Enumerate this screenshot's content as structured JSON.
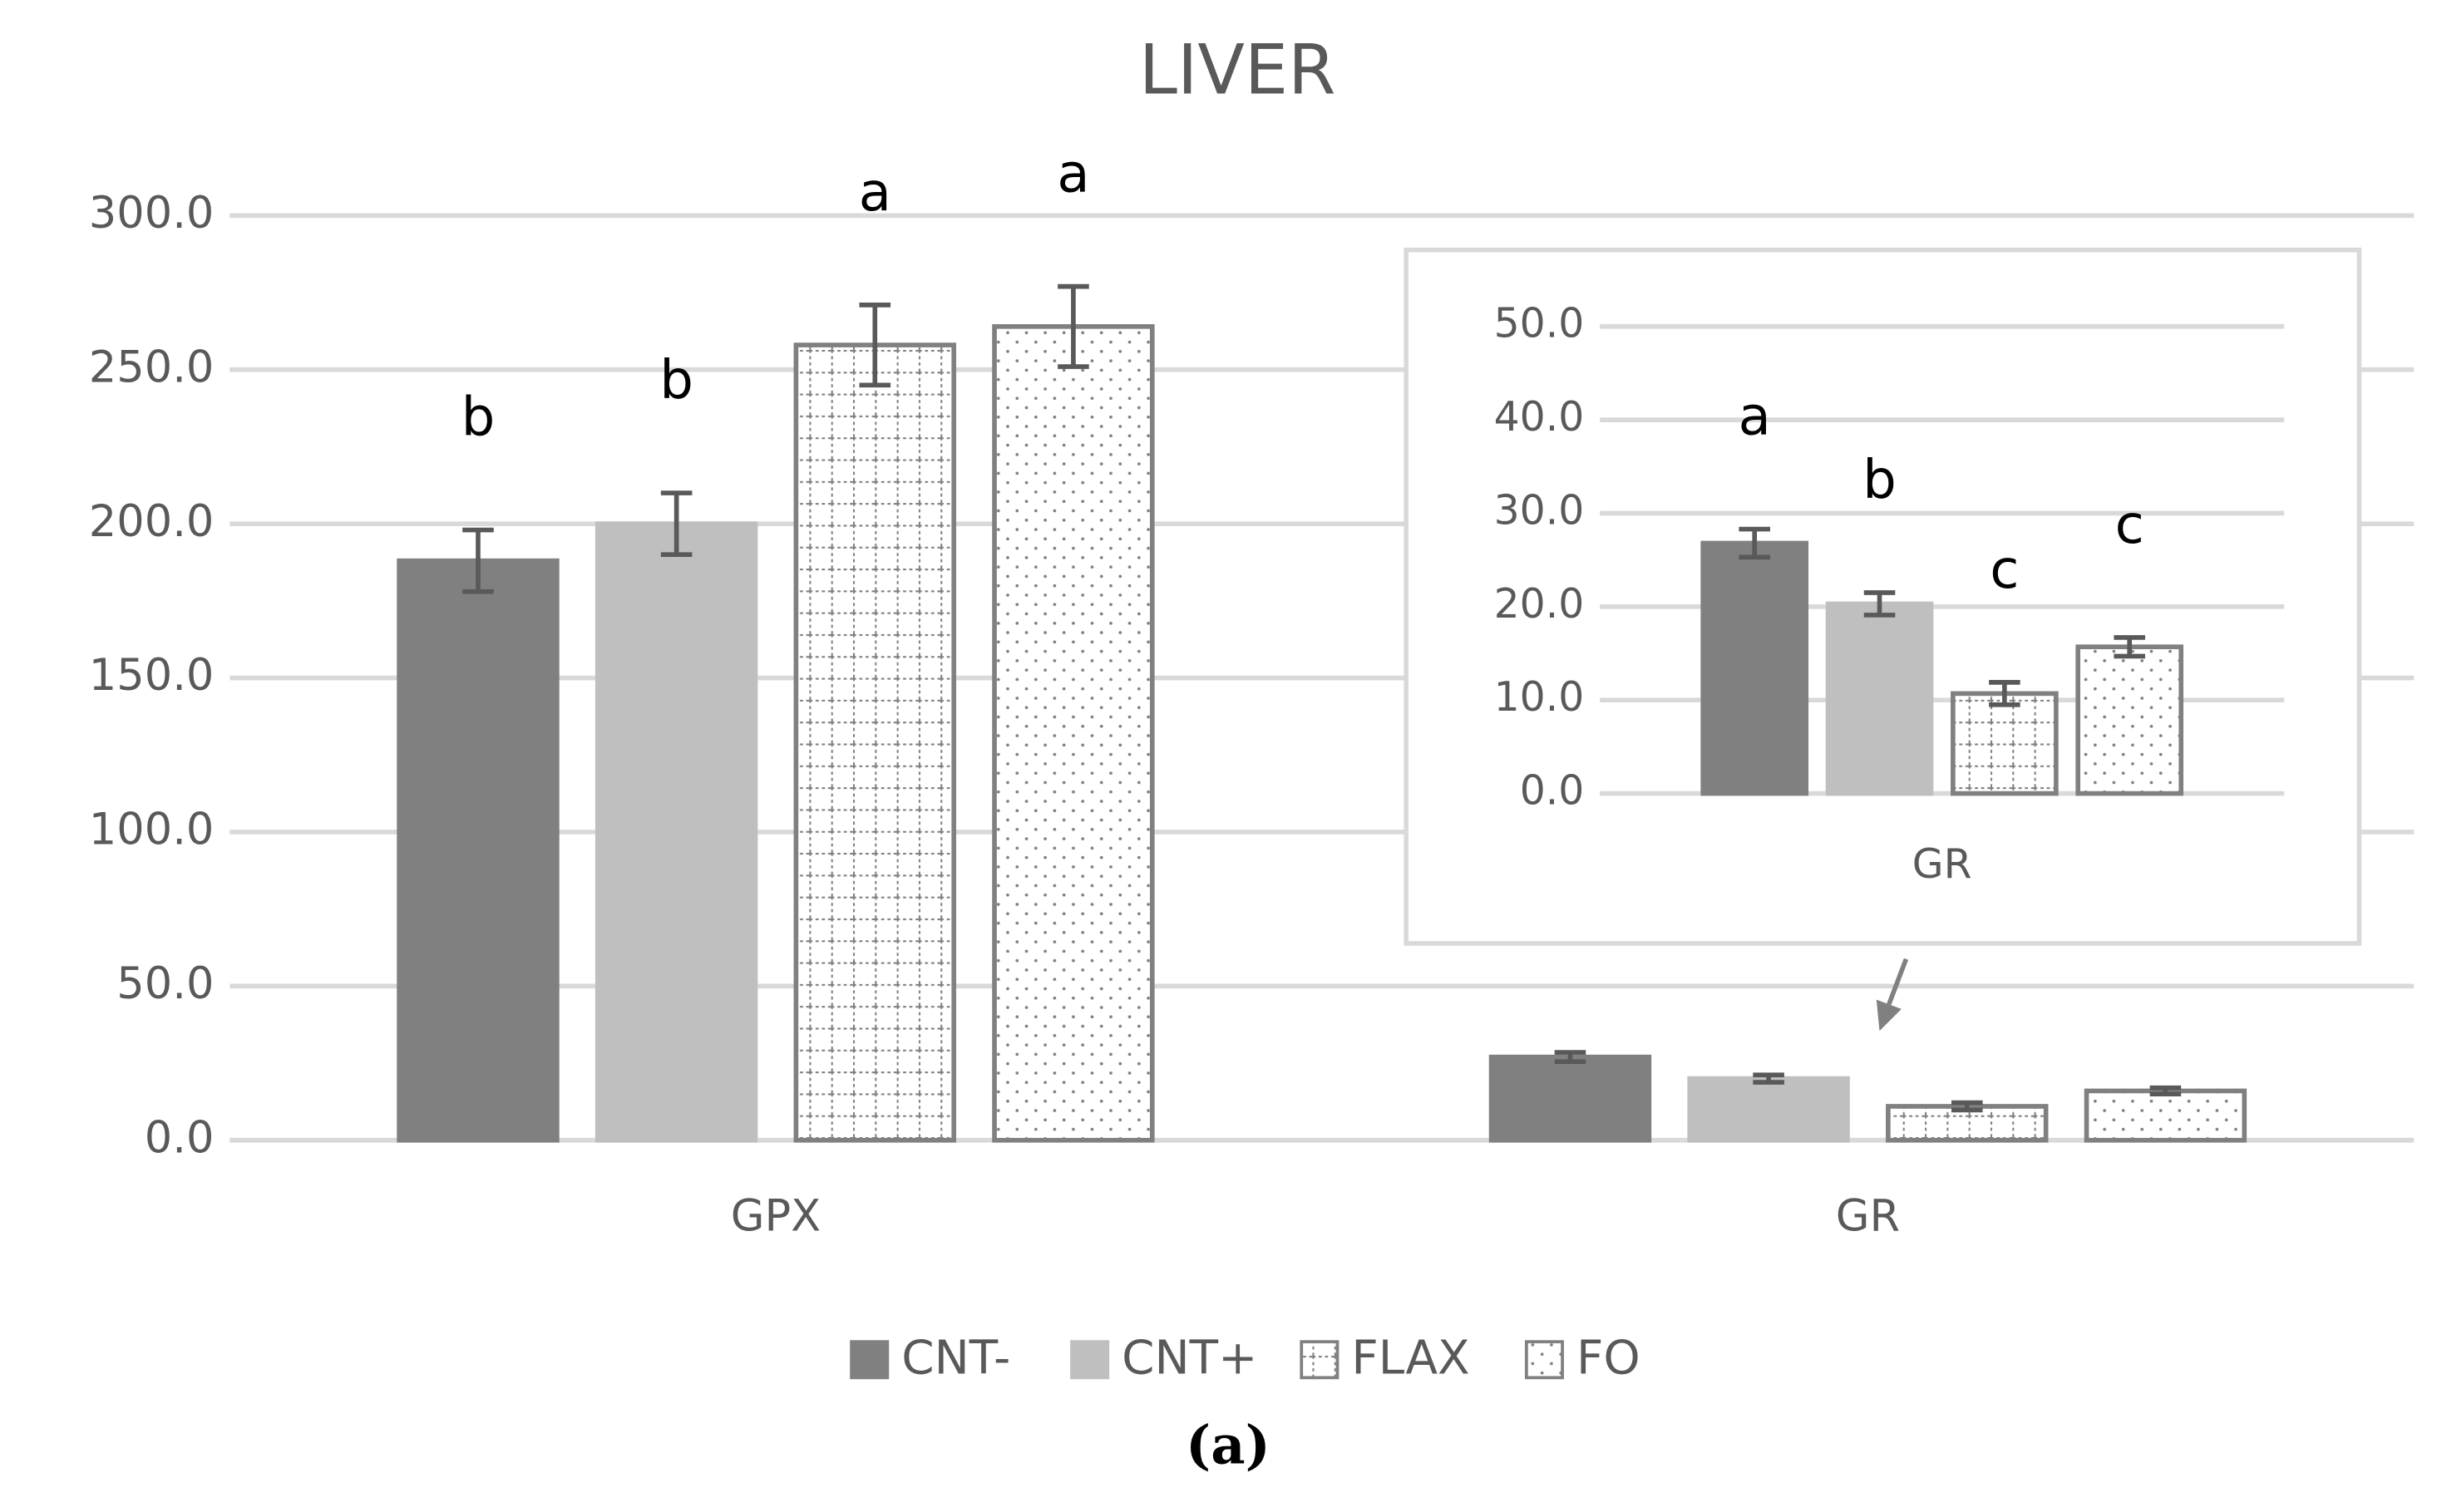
{
  "chart_data": [
    {
      "type": "bar",
      "title": "LIVER",
      "categories": [
        "GPX",
        "GR"
      ],
      "series": [
        {
          "name": "CNT-",
          "color": "#808080",
          "pattern": "solid",
          "values": [
            188,
            27
          ],
          "errors": [
            10,
            1.5
          ],
          "letters": [
            "b",
            null
          ]
        },
        {
          "name": "CNT+",
          "color": "#bfbfbf",
          "pattern": "solid",
          "values": [
            200,
            20
          ],
          "errors": [
            10,
            1.2
          ],
          "letters": [
            "b",
            null
          ]
        },
        {
          "name": "FLAX",
          "color": "#ffffff",
          "pattern": "grid",
          "values": [
            258,
            11
          ],
          "errors": [
            13,
            1.2
          ],
          "letters": [
            "a",
            null
          ]
        },
        {
          "name": "FO",
          "color": "#ffffff",
          "pattern": "dots",
          "values": [
            264,
            16
          ],
          "errors": [
            13,
            1.0
          ],
          "letters": [
            "a",
            null
          ]
        }
      ],
      "ylim": [
        0,
        300
      ],
      "yticks": [
        {
          "value": 0,
          "label": "0.0"
        },
        {
          "value": 50,
          "label": "50.0"
        },
        {
          "value": 100,
          "label": "100.0"
        },
        {
          "value": 150,
          "label": "150.0"
        },
        {
          "value": 200,
          "label": "200.0"
        },
        {
          "value": 250,
          "label": "250.0"
        },
        {
          "value": 300,
          "label": "300.0"
        }
      ],
      "grid": true,
      "legend": "bottom"
    },
    {
      "type": "bar",
      "categories": [
        "GR"
      ],
      "series": [
        {
          "name": "CNT-",
          "color": "#808080",
          "pattern": "solid",
          "values": [
            26.8
          ],
          "errors": [
            1.5
          ],
          "letters": [
            "a"
          ]
        },
        {
          "name": "CNT+",
          "color": "#bfbfbf",
          "pattern": "solid",
          "values": [
            20.3
          ],
          "errors": [
            1.2
          ],
          "letters": [
            "b"
          ]
        },
        {
          "name": "FLAX",
          "color": "#ffffff",
          "pattern": "grid",
          "values": [
            10.7
          ],
          "errors": [
            1.2
          ],
          "letters": [
            "c"
          ]
        },
        {
          "name": "FO",
          "color": "#ffffff",
          "pattern": "dots",
          "values": [
            15.7
          ],
          "errors": [
            1.0
          ],
          "letters": [
            "c"
          ]
        }
      ],
      "ylim": [
        0,
        50
      ],
      "yticks": [
        {
          "value": 0,
          "label": "0.0"
        },
        {
          "value": 10,
          "label": "10.0"
        },
        {
          "value": 20,
          "label": "20.0"
        },
        {
          "value": 30,
          "label": "30.0"
        },
        {
          "value": 40,
          "label": "40.0"
        },
        {
          "value": 50,
          "label": "50.0"
        }
      ],
      "grid": true
    }
  ],
  "caption": "(a)"
}
